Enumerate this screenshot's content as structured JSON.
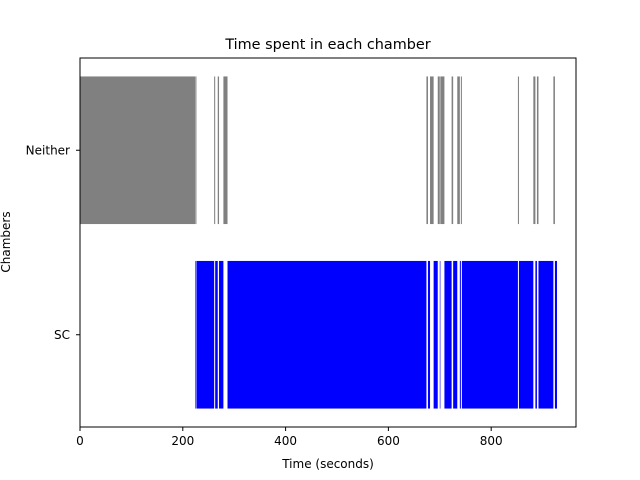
{
  "chart_data": {
    "type": "bar",
    "orientation": "horizontal-broken-bar",
    "title": "Time spent in each chamber",
    "xlabel": "Time (seconds)",
    "ylabel": "Chambers",
    "xlim": [
      0,
      965
    ],
    "x_ticks": [
      0,
      200,
      400,
      600,
      800
    ],
    "x_tick_labels": [
      "0",
      "200",
      "400",
      "600",
      "800"
    ],
    "categories": [
      "Neither",
      "SC"
    ],
    "grid": false,
    "legend": "none",
    "series": [
      {
        "category": "Neither",
        "color": "#808080",
        "intervals": [
          [
            0,
            224
          ],
          [
            224.5,
            226.5
          ],
          [
            261,
            263
          ],
          [
            268,
            270.5
          ],
          [
            279,
            287
          ],
          [
            674,
            677
          ],
          [
            681,
            688
          ],
          [
            696,
            700
          ],
          [
            701,
            709
          ],
          [
            723,
            726
          ],
          [
            734,
            739
          ],
          [
            741,
            743
          ],
          [
            852,
            854
          ],
          [
            882,
            886
          ],
          [
            889,
            892
          ],
          [
            921,
            924
          ]
        ]
      },
      {
        "category": "SC",
        "color": "#0000ff",
        "intervals": [
          [
            224,
            224.5
          ],
          [
            226.5,
            261
          ],
          [
            263,
            268
          ],
          [
            270.5,
            279
          ],
          [
            287,
            674
          ],
          [
            677,
            681
          ],
          [
            688,
            696
          ],
          [
            700,
            701
          ],
          [
            709,
            723
          ],
          [
            726,
            734
          ],
          [
            739,
            741
          ],
          [
            743,
            852
          ],
          [
            854,
            882
          ],
          [
            886,
            889
          ],
          [
            892,
            921
          ],
          [
            924,
            928
          ]
        ]
      }
    ]
  }
}
